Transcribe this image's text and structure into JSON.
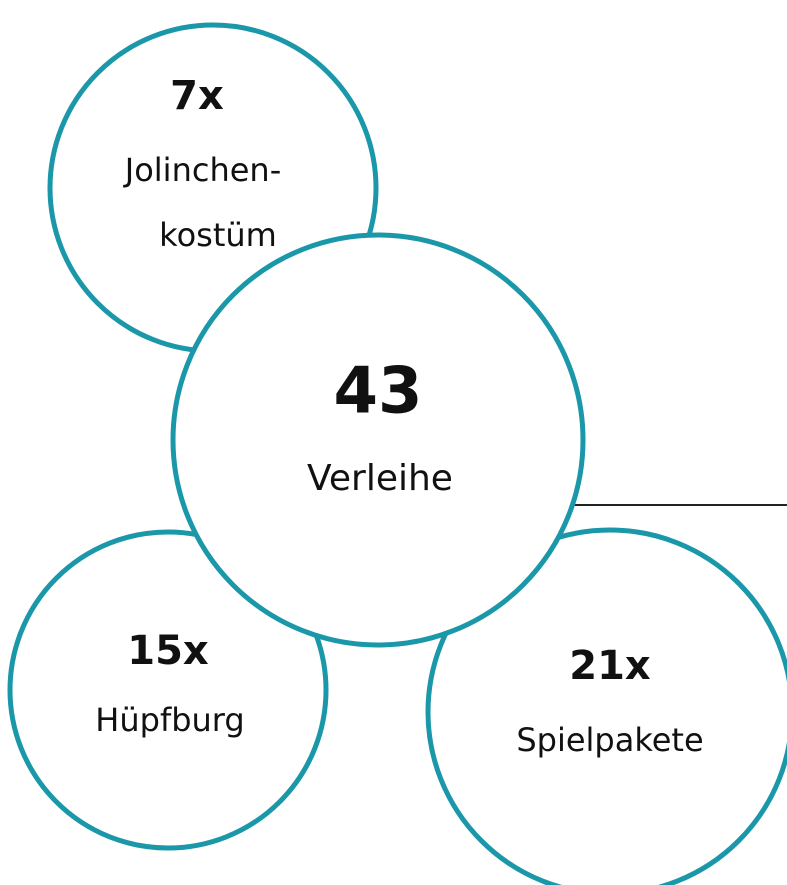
{
  "center": {
    "value": "43",
    "label": "Verleihe"
  },
  "items": [
    {
      "value": "7x",
      "label": [
        "Jolinchen-",
        "kostüm"
      ]
    },
    {
      "value": "15x",
      "label": [
        "Hüpfburg"
      ]
    },
    {
      "value": "21x",
      "label": [
        "Spielpakete"
      ]
    }
  ]
}
